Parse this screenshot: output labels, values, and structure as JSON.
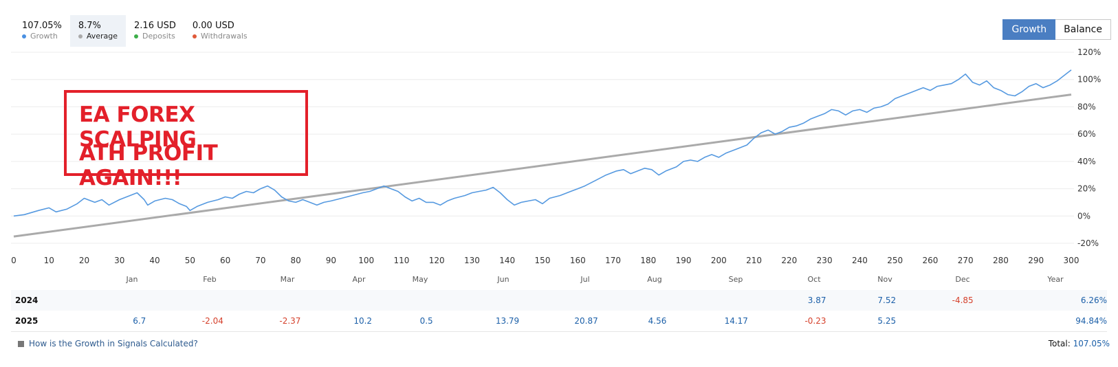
{
  "stats": [
    {
      "value": "107.05%",
      "label": "Growth",
      "color": "#4a90e2"
    },
    {
      "value": "8.7%",
      "label": "Average",
      "color": "#aaaaaa"
    },
    {
      "value": "2.16 USD",
      "label": "Deposits",
      "color": "#3cae49"
    },
    {
      "value": "0.00 USD",
      "label": "Withdrawals",
      "color": "#e05a3a"
    }
  ],
  "toggle": {
    "growth": "Growth",
    "balance": "Balance"
  },
  "overlay": {
    "line1": "EA FOREX SCALPING",
    "line2": "ATH PROFIT AGAIN!!!"
  },
  "chart_data": {
    "type": "line",
    "xlim": [
      0,
      300
    ],
    "ylim": [
      -20,
      120
    ],
    "x_ticks": [
      "0",
      "10",
      "20",
      "30",
      "40",
      "50",
      "60",
      "70",
      "80",
      "90",
      "100",
      "110",
      "120",
      "130",
      "140",
      "150",
      "160",
      "170",
      "180",
      "190",
      "200",
      "210",
      "220",
      "230",
      "240",
      "250",
      "260",
      "270",
      "280",
      "290",
      "300"
    ],
    "y_ticks": [
      "120%",
      "100%",
      "80%",
      "60%",
      "40%",
      "20%",
      "0%",
      "-20%"
    ],
    "y_tick_values": [
      120,
      100,
      80,
      60,
      40,
      20,
      0,
      -20
    ],
    "grid": true,
    "series": [
      {
        "color": "#5599e0",
        "points": [
          [
            0,
            0
          ],
          [
            3,
            1
          ],
          [
            7,
            4
          ],
          [
            10,
            6
          ],
          [
            12,
            3
          ],
          [
            15,
            5
          ],
          [
            18,
            9
          ],
          [
            20,
            13
          ],
          [
            23,
            10
          ],
          [
            25,
            12
          ],
          [
            27,
            8
          ],
          [
            30,
            12
          ],
          [
            33,
            15
          ],
          [
            35,
            17
          ],
          [
            37,
            12
          ],
          [
            38,
            8
          ],
          [
            40,
            11
          ],
          [
            43,
            13
          ],
          [
            45,
            12
          ],
          [
            47,
            9
          ],
          [
            49,
            7
          ],
          [
            50,
            4
          ],
          [
            52,
            7
          ],
          [
            55,
            10
          ],
          [
            58,
            12
          ],
          [
            60,
            14
          ],
          [
            62,
            13
          ],
          [
            64,
            16
          ],
          [
            66,
            18
          ],
          [
            68,
            17
          ],
          [
            70,
            20
          ],
          [
            72,
            22
          ],
          [
            74,
            19
          ],
          [
            76,
            14
          ],
          [
            78,
            11
          ],
          [
            80,
            10
          ],
          [
            82,
            12
          ],
          [
            84,
            10
          ],
          [
            86,
            8
          ],
          [
            88,
            10
          ],
          [
            90,
            11
          ],
          [
            93,
            13
          ],
          [
            96,
            15
          ],
          [
            99,
            17
          ],
          [
            101,
            18
          ],
          [
            103,
            20
          ],
          [
            105,
            22
          ],
          [
            107,
            20
          ],
          [
            109,
            18
          ],
          [
            111,
            14
          ],
          [
            113,
            11
          ],
          [
            115,
            13
          ],
          [
            117,
            10
          ],
          [
            119,
            10
          ],
          [
            121,
            8
          ],
          [
            123,
            11
          ],
          [
            125,
            13
          ],
          [
            128,
            15
          ],
          [
            130,
            17
          ],
          [
            132,
            18
          ],
          [
            134,
            19
          ],
          [
            136,
            21
          ],
          [
            138,
            17
          ],
          [
            140,
            12
          ],
          [
            142,
            8
          ],
          [
            144,
            10
          ],
          [
            146,
            11
          ],
          [
            148,
            12
          ],
          [
            150,
            9
          ],
          [
            152,
            13
          ],
          [
            155,
            15
          ],
          [
            158,
            18
          ],
          [
            160,
            20
          ],
          [
            162,
            22
          ],
          [
            165,
            26
          ],
          [
            168,
            30
          ],
          [
            171,
            33
          ],
          [
            173,
            34
          ],
          [
            175,
            31
          ],
          [
            177,
            33
          ],
          [
            179,
            35
          ],
          [
            181,
            34
          ],
          [
            183,
            30
          ],
          [
            185,
            33
          ],
          [
            188,
            36
          ],
          [
            190,
            40
          ],
          [
            192,
            41
          ],
          [
            194,
            40
          ],
          [
            196,
            43
          ],
          [
            198,
            45
          ],
          [
            200,
            43
          ],
          [
            202,
            46
          ],
          [
            205,
            49
          ],
          [
            208,
            52
          ],
          [
            210,
            57
          ],
          [
            212,
            61
          ],
          [
            214,
            63
          ],
          [
            216,
            60
          ],
          [
            218,
            62
          ],
          [
            220,
            65
          ],
          [
            222,
            66
          ],
          [
            224,
            68
          ],
          [
            226,
            71
          ],
          [
            228,
            73
          ],
          [
            230,
            75
          ],
          [
            232,
            78
          ],
          [
            234,
            77
          ],
          [
            236,
            74
          ],
          [
            238,
            77
          ],
          [
            240,
            78
          ],
          [
            242,
            76
          ],
          [
            244,
            79
          ],
          [
            246,
            80
          ],
          [
            248,
            82
          ],
          [
            250,
            86
          ],
          [
            252,
            88
          ],
          [
            254,
            90
          ],
          [
            256,
            92
          ],
          [
            258,
            94
          ],
          [
            260,
            92
          ],
          [
            262,
            95
          ],
          [
            264,
            96
          ],
          [
            266,
            97
          ],
          [
            268,
            100
          ],
          [
            270,
            104
          ],
          [
            272,
            98
          ],
          [
            274,
            96
          ],
          [
            276,
            99
          ],
          [
            278,
            94
          ],
          [
            280,
            92
          ],
          [
            282,
            89
          ],
          [
            284,
            88
          ],
          [
            286,
            91
          ],
          [
            288,
            95
          ],
          [
            290,
            97
          ],
          [
            292,
            94
          ],
          [
            294,
            96
          ],
          [
            296,
            99
          ],
          [
            298,
            103
          ],
          [
            300,
            107
          ]
        ]
      },
      {
        "color": "#aaaaaa",
        "points": [
          [
            0,
            -15
          ],
          [
            300,
            89
          ]
        ]
      }
    ]
  },
  "table": {
    "header": [
      "Jan",
      "Feb",
      "Mar",
      "Apr",
      "May",
      "Jun",
      "Jul",
      "Aug",
      "Sep",
      "Oct",
      "Nov",
      "Dec",
      "Year"
    ],
    "rows": [
      {
        "year": "2024",
        "cells": [
          "",
          "",
          "",
          "",
          "",
          "",
          "",
          "",
          "",
          "3.87",
          "7.52",
          "-4.85",
          "6.26%"
        ]
      },
      {
        "year": "2025",
        "cells": [
          "6.7",
          "-2.04",
          "-2.37",
          "10.2",
          "0.5",
          "13.79",
          "20.87",
          "4.56",
          "14.17",
          "-0.23",
          "5.25",
          "",
          "94.84%"
        ]
      }
    ]
  },
  "footer": {
    "link": "How is the Growth in Signals Calculated?",
    "total_label": "Total:",
    "total_value": "107.05%"
  }
}
